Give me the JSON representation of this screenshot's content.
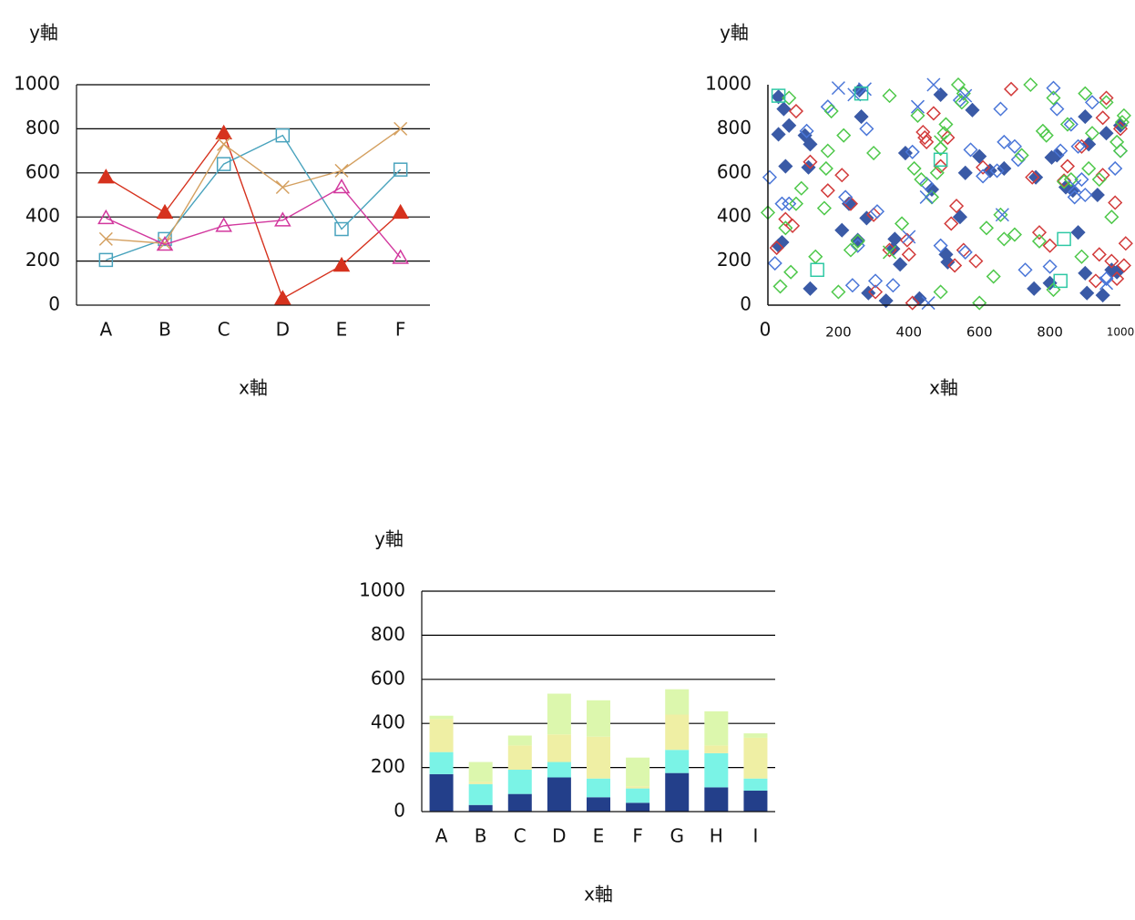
{
  "colors": {
    "axis": "#111111",
    "grid": "#000000",
    "background": "#ffffff"
  },
  "chart_data": [
    {
      "type": "line",
      "xlabel": "x軸",
      "ylabel": "y軸",
      "ylim": [
        0,
        1000
      ],
      "yticks": [
        "0",
        "200",
        "400",
        "600",
        "800",
        "1000"
      ],
      "grid": "horizontal",
      "categories": [
        "A",
        "B",
        "C",
        "D",
        "E",
        "F"
      ],
      "series": [
        {
          "marker": "filled-triangle",
          "color": "#d6321e",
          "values": [
            580,
            420,
            780,
            30,
            180,
            420
          ]
        },
        {
          "marker": "hollow-square",
          "color": "#49a3bd",
          "values": [
            205,
            300,
            640,
            770,
            345,
            615
          ]
        },
        {
          "marker": "x",
          "color": "#d4a060",
          "values": [
            300,
            280,
            730,
            535,
            610,
            800
          ]
        },
        {
          "marker": "hollow-triangle",
          "color": "#d2389e",
          "values": [
            395,
            275,
            360,
            385,
            535,
            215
          ]
        }
      ]
    },
    {
      "type": "scatter",
      "xlabel": "x軸",
      "ylabel": "y軸",
      "xlim": [
        0,
        1000
      ],
      "ylim": [
        0,
        1000
      ],
      "xticks": [
        "0",
        "200",
        "400",
        "600",
        "800",
        "1000"
      ],
      "yticks": [
        "0",
        "200",
        "400",
        "600",
        "800",
        "1000"
      ],
      "grid": "none",
      "series": [
        {
          "marker": "filled-diamond",
          "color": "#3a5aa6",
          "points": [
            [
              30,
              945
            ],
            [
              45,
              890
            ],
            [
              30,
              775
            ],
            [
              60,
              815
            ],
            [
              105,
              770
            ],
            [
              120,
              730
            ],
            [
              115,
              625
            ],
            [
              50,
              630
            ],
            [
              30,
              270
            ],
            [
              40,
              285
            ],
            [
              120,
              75
            ],
            [
              210,
              340
            ],
            [
              230,
              460
            ],
            [
              255,
              295
            ],
            [
              260,
              975
            ],
            [
              265,
              855
            ],
            [
              285,
              55
            ],
            [
              280,
              395
            ],
            [
              335,
              20
            ],
            [
              355,
              255
            ],
            [
              360,
              300
            ],
            [
              375,
              185
            ],
            [
              390,
              690
            ],
            [
              430,
              30
            ],
            [
              465,
              525
            ],
            [
              490,
              955
            ],
            [
              505,
              230
            ],
            [
              510,
              195
            ],
            [
              545,
              400
            ],
            [
              560,
              600
            ],
            [
              580,
              885
            ],
            [
              600,
              675
            ],
            [
              630,
              610
            ],
            [
              670,
              620
            ],
            [
              760,
              580
            ],
            [
              755,
              75
            ],
            [
              800,
              100
            ],
            [
              805,
              670
            ],
            [
              820,
              680
            ],
            [
              845,
              535
            ],
            [
              865,
              520
            ],
            [
              880,
              330
            ],
            [
              900,
              855
            ],
            [
              905,
              55
            ],
            [
              900,
              145
            ],
            [
              910,
              730
            ],
            [
              935,
              500
            ],
            [
              950,
              45
            ],
            [
              960,
              780
            ],
            [
              975,
              160
            ],
            [
              990,
              150
            ],
            [
              1000,
              815
            ]
          ]
        },
        {
          "marker": "hollow-diamond",
          "color": "#d23a3a",
          "points": [
            [
              25,
              260
            ],
            [
              50,
              390
            ],
            [
              70,
              360
            ],
            [
              80,
              880
            ],
            [
              120,
              650
            ],
            [
              170,
              520
            ],
            [
              210,
              590
            ],
            [
              235,
              460
            ],
            [
              300,
              410
            ],
            [
              305,
              60
            ],
            [
              345,
              250
            ],
            [
              395,
              295
            ],
            [
              400,
              230
            ],
            [
              410,
              10
            ],
            [
              440,
              785
            ],
            [
              445,
              760
            ],
            [
              450,
              740
            ],
            [
              470,
              870
            ],
            [
              490,
              630
            ],
            [
              510,
              760
            ],
            [
              520,
              370
            ],
            [
              530,
              180
            ],
            [
              535,
              450
            ],
            [
              555,
              250
            ],
            [
              590,
              200
            ],
            [
              610,
              625
            ],
            [
              690,
              980
            ],
            [
              750,
              580
            ],
            [
              770,
              330
            ],
            [
              800,
              270
            ],
            [
              840,
              565
            ],
            [
              850,
              630
            ],
            [
              890,
              720
            ],
            [
              930,
              110
            ],
            [
              940,
              230
            ],
            [
              950,
              850
            ],
            [
              950,
              590
            ],
            [
              960,
              940
            ],
            [
              975,
              200
            ],
            [
              985,
              465
            ],
            [
              990,
              120
            ],
            [
              1000,
              800
            ],
            [
              1010,
              180
            ],
            [
              1015,
              280
            ]
          ]
        },
        {
          "marker": "hollow-diamond",
          "color": "#4a76d8",
          "points": [
            [
              5,
              580
            ],
            [
              20,
              190
            ],
            [
              40,
              460
            ],
            [
              60,
              460
            ],
            [
              110,
              790
            ],
            [
              170,
              900
            ],
            [
              220,
              490
            ],
            [
              240,
              90
            ],
            [
              255,
              270
            ],
            [
              280,
              800
            ],
            [
              305,
              110
            ],
            [
              310,
              425
            ],
            [
              355,
              90
            ],
            [
              410,
              695
            ],
            [
              450,
              550
            ],
            [
              490,
              270
            ],
            [
              545,
              930
            ],
            [
              560,
              240
            ],
            [
              575,
              705
            ],
            [
              610,
              585
            ],
            [
              650,
              610
            ],
            [
              660,
              890
            ],
            [
              670,
              740
            ],
            [
              700,
              720
            ],
            [
              710,
              660
            ],
            [
              730,
              160
            ],
            [
              800,
              175
            ],
            [
              810,
              985
            ],
            [
              820,
              890
            ],
            [
              830,
              700
            ],
            [
              860,
              820
            ],
            [
              870,
              490
            ],
            [
              880,
              720
            ],
            [
              890,
              570
            ],
            [
              900,
              500
            ],
            [
              920,
              920
            ],
            [
              960,
              120
            ],
            [
              985,
              620
            ],
            [
              1000,
              700
            ]
          ]
        },
        {
          "marker": "hollow-diamond",
          "color": "#4ec84a",
          "points": [
            [
              0,
              420
            ],
            [
              35,
              85
            ],
            [
              50,
              350
            ],
            [
              60,
              940
            ],
            [
              65,
              150
            ],
            [
              80,
              460
            ],
            [
              95,
              530
            ],
            [
              135,
              220
            ],
            [
              160,
              440
            ],
            [
              165,
              620
            ],
            [
              170,
              700
            ],
            [
              180,
              880
            ],
            [
              200,
              60
            ],
            [
              215,
              770
            ],
            [
              235,
              250
            ],
            [
              255,
              290
            ],
            [
              300,
              690
            ],
            [
              345,
              950
            ],
            [
              380,
              370
            ],
            [
              415,
              620
            ],
            [
              425,
              860
            ],
            [
              435,
              570
            ],
            [
              465,
              490
            ],
            [
              480,
              600
            ],
            [
              490,
              710
            ],
            [
              490,
              60
            ],
            [
              500,
              780
            ],
            [
              505,
              820
            ],
            [
              540,
              1000
            ],
            [
              550,
              920
            ],
            [
              555,
              960
            ],
            [
              600,
              10
            ],
            [
              620,
              350
            ],
            [
              640,
              130
            ],
            [
              660,
              410
            ],
            [
              670,
              300
            ],
            [
              700,
              320
            ],
            [
              720,
              680
            ],
            [
              745,
              1000
            ],
            [
              770,
              290
            ],
            [
              780,
              790
            ],
            [
              790,
              770
            ],
            [
              810,
              940
            ],
            [
              810,
              70
            ],
            [
              840,
              560
            ],
            [
              850,
              820
            ],
            [
              860,
              570
            ],
            [
              890,
              220
            ],
            [
              900,
              960
            ],
            [
              910,
              620
            ],
            [
              920,
              780
            ],
            [
              940,
              570
            ],
            [
              960,
              920
            ],
            [
              975,
              400
            ],
            [
              990,
              740
            ],
            [
              1000,
              700
            ],
            [
              1005,
              830
            ],
            [
              1010,
              860
            ]
          ]
        },
        {
          "marker": "x",
          "color": "#4a76d8",
          "points": [
            [
              200,
              985
            ],
            [
              245,
              955
            ],
            [
              275,
              980
            ],
            [
              400,
              310
            ],
            [
              425,
              900
            ],
            [
              450,
              490
            ],
            [
              455,
              10
            ],
            [
              470,
              1000
            ],
            [
              560,
              950
            ],
            [
              665,
              410
            ],
            [
              870,
              540
            ],
            [
              960,
              100
            ]
          ]
        },
        {
          "marker": "x",
          "color": "#4ec84a",
          "points": [
            [
              345,
              240
            ],
            [
              490,
              740
            ]
          ]
        },
        {
          "marker": "hollow-square",
          "color": "#2ec8a4",
          "points": [
            [
              30,
              950
            ],
            [
              140,
              160
            ],
            [
              265,
              960
            ],
            [
              490,
              660
            ],
            [
              840,
              300
            ],
            [
              830,
              110
            ]
          ]
        }
      ]
    },
    {
      "type": "bar",
      "stacked": true,
      "xlabel": "x軸",
      "ylabel": "y軸",
      "ylim": [
        0,
        1000
      ],
      "yticks": [
        "0",
        "200",
        "400",
        "600",
        "800",
        "1000"
      ],
      "grid": "horizontal",
      "categories": [
        "A",
        "B",
        "C",
        "D",
        "E",
        "F",
        "G",
        "H",
        "I"
      ],
      "series": [
        {
          "color": "#233f8a",
          "values": [
            170,
            30,
            80,
            155,
            65,
            40,
            175,
            110,
            95
          ]
        },
        {
          "color": "#7af3e6",
          "values": [
            100,
            95,
            110,
            70,
            85,
            65,
            105,
            155,
            55
          ]
        },
        {
          "color": "#efefa4",
          "values": [
            150,
            10,
            110,
            125,
            190,
            10,
            160,
            35,
            185
          ]
        },
        {
          "color": "#dcf7ad",
          "values": [
            15,
            90,
            45,
            185,
            165,
            130,
            115,
            155,
            20
          ]
        }
      ]
    }
  ]
}
